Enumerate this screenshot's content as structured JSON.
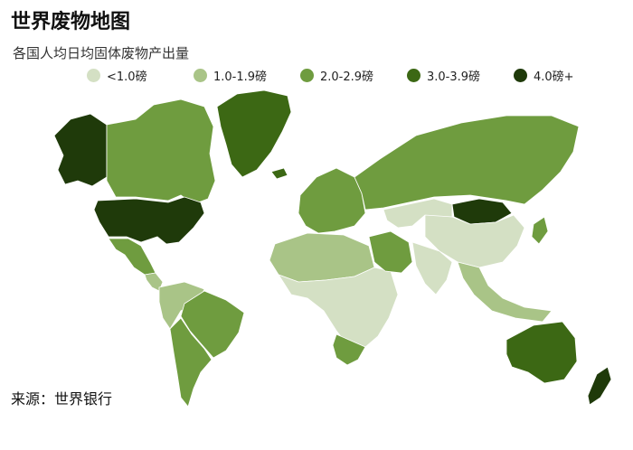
{
  "title": "世界废物地图",
  "subtitle": "各国人均日均固体废物产出量",
  "legend": [
    {
      "label": "<1.0磅",
      "color": "#d4e0c4"
    },
    {
      "label": "1.0-1.9磅",
      "color": "#a9c487"
    },
    {
      "label": "2.0-2.9磅",
      "color": "#6f9c3f"
    },
    {
      "label": "3.0-3.9磅",
      "color": "#3c6814"
    },
    {
      "label": "4.0磅+",
      "color": "#1f3a0a"
    }
  ],
  "source": "来源：世界银行",
  "regions": {
    "alaska": 4,
    "canada": 2,
    "usa": 4,
    "greenland": 3,
    "mexico": 2,
    "central_america": 1,
    "northern_south_america": 1,
    "brazil": 2,
    "southern_south_america": 2,
    "europe": 2,
    "russia": 2,
    "north_africa": 1,
    "sub_saharan_africa": 0,
    "southern_africa": 2,
    "middle_east": 2,
    "mongolia": 4,
    "china": 0,
    "india": 0,
    "southeast_asia": 1,
    "japan": 2,
    "australia": 3,
    "new_zealand": 4,
    "iceland": 3
  }
}
